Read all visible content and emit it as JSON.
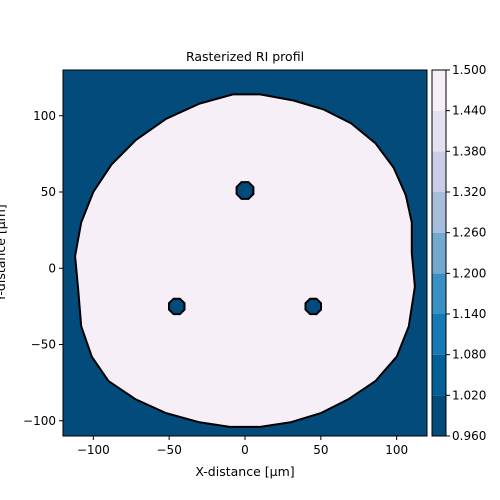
{
  "chart_data": {
    "type": "heatmap",
    "title": "Rasterized RI profil",
    "xlabel": "X-distance [μm]",
    "ylabel": "Y-distance [μm]",
    "xlim": [
      -120,
      120
    ],
    "ylim": [
      -110,
      130
    ],
    "x_ticks": [
      -100,
      -50,
      0,
      50,
      100
    ],
    "x_tick_labels": [
      "−100",
      "−50",
      "0",
      "50",
      "100"
    ],
    "y_ticks": [
      -100,
      -50,
      0,
      50,
      100
    ],
    "y_tick_labels": [
      "−100",
      "−50",
      "0",
      "50",
      "100"
    ],
    "background_value": 0.96,
    "region_value": 1.5,
    "region_outline": [
      [
        -8,
        114
      ],
      [
        10,
        114
      ],
      [
        32,
        110
      ],
      [
        52,
        104
      ],
      [
        70,
        95
      ],
      [
        86,
        82
      ],
      [
        98,
        66
      ],
      [
        106,
        48
      ],
      [
        110,
        30
      ],
      [
        110,
        10
      ],
      [
        112,
        -12
      ],
      [
        108,
        -38
      ],
      [
        100,
        -58
      ],
      [
        86,
        -74
      ],
      [
        68,
        -86
      ],
      [
        50,
        -95
      ],
      [
        30,
        -101
      ],
      [
        10,
        -104
      ],
      [
        -10,
        -104
      ],
      [
        -30,
        -101
      ],
      [
        -52,
        -95
      ],
      [
        -72,
        -86
      ],
      [
        -90,
        -74
      ],
      [
        -101,
        -58
      ],
      [
        -108,
        -38
      ],
      [
        -110,
        -14
      ],
      [
        -112,
        8
      ],
      [
        -108,
        30
      ],
      [
        -100,
        50
      ],
      [
        -88,
        68
      ],
      [
        -72,
        84
      ],
      [
        -52,
        98
      ],
      [
        -30,
        108
      ]
    ],
    "inclusions": [
      {
        "x": 0,
        "y": 51,
        "r": 6,
        "value": 0.96
      },
      {
        "x": -45,
        "y": -25,
        "r": 5.5,
        "value": 0.96
      },
      {
        "x": 45,
        "y": -25,
        "r": 5.5,
        "value": 0.96
      }
    ],
    "colorbar": {
      "levels": [
        0.96,
        1.02,
        1.08,
        1.14,
        1.2,
        1.26,
        1.32,
        1.38,
        1.44,
        1.5
      ],
      "tick_labels": [
        "0.960",
        "1.020",
        "1.080",
        "1.140",
        "1.200",
        "1.260",
        "1.320",
        "1.380",
        "1.440",
        "1.500"
      ],
      "colors": [
        "#034b7a",
        "#045f96",
        "#1479b4",
        "#3991c3",
        "#74a9cf",
        "#a6bddb",
        "#c9cde6",
        "#e3e1ef",
        "#f6eff7"
      ]
    }
  }
}
